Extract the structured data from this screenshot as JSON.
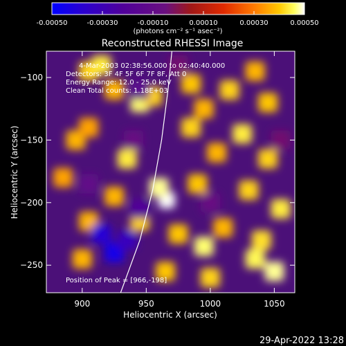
{
  "colorbar": {
    "tick_labels": [
      "-0.00050",
      "-0.00030",
      "-0.00010",
      "0.00010",
      "0.00030",
      "0.00050"
    ],
    "tick_values": [
      -0.0005,
      -0.0003,
      -0.0001,
      0.0001,
      0.0003,
      0.0005
    ],
    "range": [
      -0.0005,
      0.0005
    ],
    "units_label": "(photons cm⁻² s⁻¹ asec⁻²)",
    "colormap": [
      "#0000ff",
      "#2a00d0",
      "#50009a",
      "#6a1080",
      "#a01818",
      "#e02a00",
      "#ff7a00",
      "#ffc800",
      "#ffff60",
      "#ffffff"
    ]
  },
  "title": "Reconstructed RHESSI Image",
  "info": {
    "line1": "4-Mar-2003 02:38:56.000 to 02:40:40.000",
    "line2": "Detectors: 3F 4F 5F 6F 7F 8F, Att 0",
    "line3": "Energy Range: 12.0 - 25.0 keV",
    "line4": "Clean     Total counts: 1.18E+03",
    "peak": "Position of Peak = [966,-198]"
  },
  "timestamp": "29-Apr-2022 13:28",
  "chart_data": {
    "type": "heatmap",
    "title": "Reconstructed RHESSI Image",
    "xlabel": "Heliocentric X (arcsec)",
    "ylabel": "Heliocentric Y (arcsec)",
    "xlim": [
      872,
      1066
    ],
    "ylim": [
      -272,
      -79
    ],
    "x_ticks": [
      900,
      950,
      1000,
      1050
    ],
    "y_ticks": [
      -250,
      -200,
      -150,
      -100
    ],
    "x_tick_labels": [
      "900",
      "950",
      "1000",
      "1050"
    ],
    "y_tick_labels": [
      "−250",
      "−200",
      "−150",
      "−100"
    ],
    "peak": [
      966,
      -198
    ],
    "limb_curve": [
      [
        930,
        -272
      ],
      [
        945,
        -230
      ],
      [
        955,
        -190
      ],
      [
        962,
        -150
      ],
      [
        967,
        -110
      ],
      [
        970,
        -79
      ]
    ],
    "cells": [
      [
        905,
        -95,
        0.6
      ],
      [
        915,
        -90,
        0.7
      ],
      [
        925,
        -110,
        0.5
      ],
      [
        945,
        -120,
        0.8
      ],
      [
        955,
        -115,
        0.6
      ],
      [
        985,
        -105,
        0.55
      ],
      [
        995,
        -125,
        0.5
      ],
      [
        1015,
        -110,
        0.6
      ],
      [
        1035,
        -95,
        0.5
      ],
      [
        1045,
        -120,
        0.55
      ],
      [
        895,
        -150,
        0.5
      ],
      [
        905,
        -140,
        0.45
      ],
      [
        935,
        -165,
        0.7
      ],
      [
        985,
        -140,
        0.6
      ],
      [
        1005,
        -160,
        0.5
      ],
      [
        1025,
        -145,
        0.7
      ],
      [
        1045,
        -165,
        0.6
      ],
      [
        885,
        -180,
        0.45
      ],
      [
        925,
        -195,
        0.5
      ],
      [
        966,
        -198,
        1.0
      ],
      [
        960,
        -188,
        0.85
      ],
      [
        990,
        -185,
        0.55
      ],
      [
        1030,
        -190,
        0.6
      ],
      [
        1055,
        -205,
        0.7
      ],
      [
        905,
        -215,
        0.5
      ],
      [
        945,
        -215,
        0.6
      ],
      [
        975,
        -225,
        0.55
      ],
      [
        995,
        -235,
        0.8
      ],
      [
        1010,
        -220,
        0.5
      ],
      [
        1040,
        -230,
        0.65
      ],
      [
        1050,
        -255,
        0.85
      ],
      [
        1035,
        -245,
        0.75
      ],
      [
        900,
        -245,
        0.5
      ],
      [
        965,
        -255,
        0.55
      ],
      [
        1000,
        -260,
        0.6
      ],
      [
        925,
        -240,
        -0.9
      ],
      [
        915,
        -225,
        -0.8
      ],
      [
        935,
        -230,
        -0.7
      ],
      [
        945,
        -205,
        -0.55
      ],
      [
        905,
        -185,
        -0.4
      ],
      [
        940,
        -150,
        -0.35
      ],
      [
        945,
        -110,
        -0.45
      ],
      [
        1000,
        -200,
        -0.35
      ],
      [
        1055,
        -150,
        -0.3
      ],
      [
        975,
        -90,
        -0.3
      ]
    ]
  }
}
